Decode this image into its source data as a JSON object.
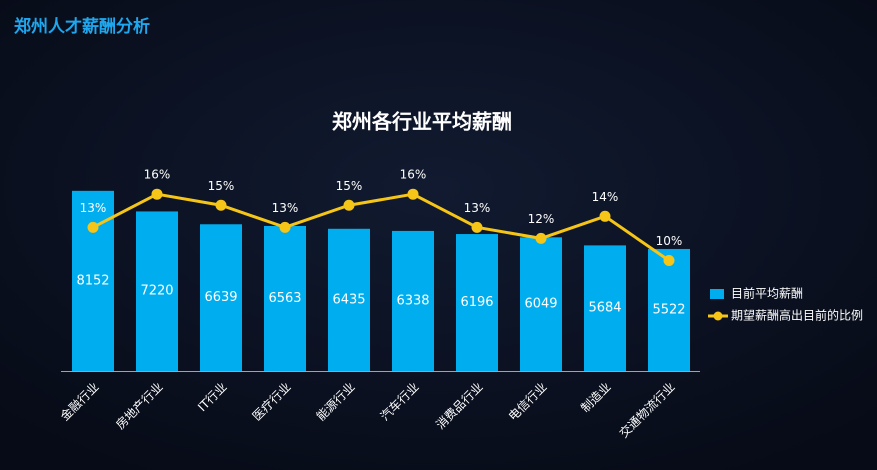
{
  "page_title": "郑州人才薪酬分析",
  "chart_data": {
    "type": "bar-line",
    "title": "郑州各行业平均薪酬",
    "categories": [
      "金融行业",
      "房地产行业",
      "IT行业",
      "医疗行业",
      "能源行业",
      "汽车行业",
      "消费品行业",
      "电信行业",
      "制造业",
      "交通物流行业"
    ],
    "series": [
      {
        "name": "目前平均薪酬",
        "type": "bar",
        "color": "#00aeef",
        "values": [
          8152,
          7220,
          6639,
          6563,
          6435,
          6338,
          6196,
          6049,
          5684,
          5522
        ]
      },
      {
        "name": "期望薪酬高出目前的比例",
        "type": "line",
        "axis": "y2",
        "color": "#f5c518",
        "values": [
          13,
          16,
          15,
          13,
          15,
          16,
          13,
          12,
          14,
          10
        ],
        "value_labels": [
          "13%",
          "16%",
          "15%",
          "13%",
          "15%",
          "16%",
          "13%",
          "12%",
          "14%",
          "10%"
        ]
      }
    ],
    "ylim": [
      0,
      10000
    ],
    "y2lim": [
      0,
      20
    ],
    "legend": "right"
  }
}
